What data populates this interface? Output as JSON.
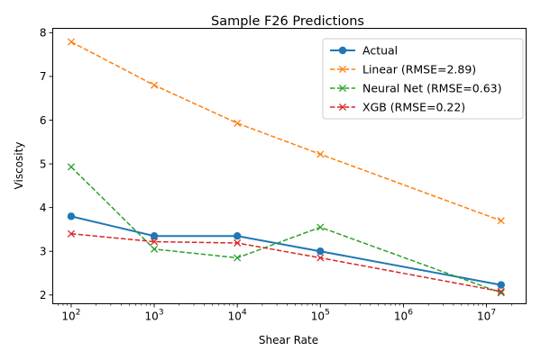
{
  "chart_data": {
    "type": "line",
    "title": "Sample F26 Predictions",
    "xlabel": "Shear Rate",
    "ylabel": "Viscosity",
    "xscale": "log",
    "xlim": [
      60,
      30000000
    ],
    "ylim": [
      1.8,
      8.1
    ],
    "x": [
      100,
      1000,
      10000,
      100000,
      15000000
    ],
    "x_ticks": [
      {
        "base": "10",
        "exp": "2"
      },
      {
        "base": "10",
        "exp": "3"
      },
      {
        "base": "10",
        "exp": "4"
      },
      {
        "base": "10",
        "exp": "5"
      },
      {
        "base": "10",
        "exp": "6"
      },
      {
        "base": "10",
        "exp": "7"
      }
    ],
    "y_ticks": [
      "2",
      "3",
      "4",
      "5",
      "6",
      "7",
      "8"
    ],
    "legend_placement": "top-right",
    "series": [
      {
        "name": "Actual",
        "values": [
          3.8,
          3.35,
          3.35,
          3.0,
          2.23
        ],
        "color": "#1f77b4",
        "marker": "circle",
        "linestyle": "solid"
      },
      {
        "name": "Linear (RMSE=2.89)",
        "values": [
          7.79,
          6.8,
          5.93,
          5.22,
          3.7
        ],
        "color": "#ff7f0e",
        "marker": "x",
        "linestyle": "dashed"
      },
      {
        "name": "Neural Net (RMSE=0.63)",
        "values": [
          4.93,
          3.05,
          2.85,
          3.55,
          2.05
        ],
        "color": "#2ca02c",
        "marker": "x",
        "linestyle": "dashed"
      },
      {
        "name": "XGB (RMSE=0.22)",
        "values": [
          3.4,
          3.22,
          3.19,
          2.85,
          2.08
        ],
        "color": "#d62728",
        "marker": "x",
        "linestyle": "dashed"
      }
    ]
  }
}
